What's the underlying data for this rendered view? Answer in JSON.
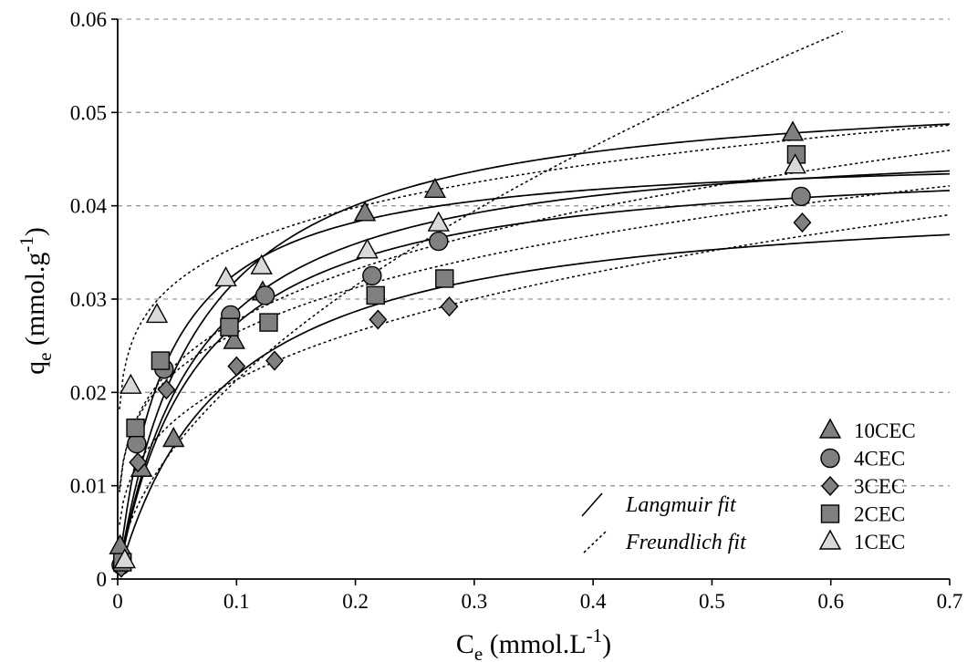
{
  "chart_data": {
    "type": "scatter",
    "xlabel": {
      "main": "C",
      "sub": "e",
      "units": " (mmol.L",
      "sup": "-1",
      "close": ")"
    },
    "ylabel": {
      "main": "q",
      "sub": "e",
      "units": " (mmol.g",
      "sup": "-1",
      "close": ")"
    },
    "xlim": [
      0,
      0.7
    ],
    "ylim": [
      0,
      0.06
    ],
    "x_ticks": [
      {
        "v": 0,
        "label": "0"
      },
      {
        "v": 0.1,
        "label": "0.1"
      },
      {
        "v": 0.2,
        "label": "0.2"
      },
      {
        "v": 0.3,
        "label": "0.3"
      },
      {
        "v": 0.4,
        "label": "0.4"
      },
      {
        "v": 0.5,
        "label": "0.5"
      },
      {
        "v": 0.6,
        "label": "0.6"
      },
      {
        "v": 0.7,
        "label": "0.7"
      }
    ],
    "y_ticks": [
      {
        "v": 0,
        "label": "0"
      },
      {
        "v": 0.01,
        "label": "0.01"
      },
      {
        "v": 0.02,
        "label": "0.02"
      },
      {
        "v": 0.03,
        "label": "0.03"
      },
      {
        "v": 0.04,
        "label": "0.04"
      },
      {
        "v": 0.05,
        "label": "0.05"
      },
      {
        "v": 0.06,
        "label": "0.06"
      }
    ],
    "horizontal_gridlines": "dashed",
    "legend_position": "bottom-right",
    "series": [
      {
        "name": "10CEC",
        "marker": "triangle",
        "fill": "#808080",
        "points": [
          [
            0.002,
            0.0035
          ],
          [
            0.02,
            0.0118
          ],
          [
            0.047,
            0.015
          ],
          [
            0.098,
            0.0255
          ],
          [
            0.122,
            0.0307
          ],
          [
            0.208,
            0.0392
          ],
          [
            0.267,
            0.0417
          ],
          [
            0.568,
            0.0478
          ]
        ],
        "langmuir": {
          "qmax": 0.0534,
          "K": 15.0
        },
        "freundlich": {
          "K": 0.0774,
          "n": 0.56,
          "x_end": 0.61
        }
      },
      {
        "name": "4CEC",
        "marker": "circle",
        "fill": "#808080",
        "points": [
          [
            0.003,
            0.0015
          ],
          [
            0.016,
            0.0145
          ],
          [
            0.039,
            0.0225
          ],
          [
            0.095,
            0.0283
          ],
          [
            0.124,
            0.0304
          ],
          [
            0.214,
            0.0325
          ],
          [
            0.27,
            0.0362
          ],
          [
            0.575,
            0.041
          ]
        ],
        "langmuir": {
          "qmax": 0.0479,
          "K": 15.0
        },
        "freundlich": {
          "K": 0.0504,
          "n": 0.26
        }
      },
      {
        "name": "3CEC",
        "marker": "diamond",
        "fill": "#808080",
        "points": [
          [
            0.003,
            0.0012
          ],
          [
            0.017,
            0.0125
          ],
          [
            0.041,
            0.0203
          ],
          [
            0.1,
            0.0228
          ],
          [
            0.132,
            0.0234
          ],
          [
            0.219,
            0.0278
          ],
          [
            0.279,
            0.0292
          ],
          [
            0.576,
            0.0382
          ]
        ],
        "langmuir": {
          "qmax": 0.0417,
          "K": 11.0
        },
        "freundlich": {
          "K": 0.0436,
          "n": 0.31
        }
      },
      {
        "name": "2CEC",
        "marker": "square",
        "fill": "#808080",
        "points": [
          [
            0.004,
            0.0018
          ],
          [
            0.015,
            0.0162
          ],
          [
            0.036,
            0.0234
          ],
          [
            0.094,
            0.027
          ],
          [
            0.127,
            0.0275
          ],
          [
            0.217,
            0.0304
          ],
          [
            0.275,
            0.0322
          ],
          [
            0.571,
            0.0455
          ]
        ],
        "langmuir": {
          "qmax": 0.0456,
          "K": 15.0
        },
        "freundlich": {
          "K": 0.0459,
          "n": 0.24
        }
      },
      {
        "name": "1CEC",
        "marker": "triangle",
        "fill": "#d9d9d9",
        "points": [
          [
            0.006,
            0.002
          ],
          [
            0.011,
            0.0207
          ],
          [
            0.033,
            0.0283
          ],
          [
            0.091,
            0.0322
          ],
          [
            0.121,
            0.0335
          ],
          [
            0.21,
            0.0352
          ],
          [
            0.27,
            0.0381
          ],
          [
            0.57,
            0.0443
          ]
        ],
        "langmuir": {
          "qmax": 0.0459,
          "K": 25.0
        },
        "freundlich": {
          "K": 0.0515,
          "n": 0.16
        }
      }
    ],
    "fit_legend": [
      {
        "label": "Langmuir fit",
        "style": "solid"
      },
      {
        "label": "Freundlich fit",
        "style": "dotted"
      }
    ],
    "colors": {
      "marker_dark": "#808080",
      "marker_light": "#d9d9d9",
      "grid": "#999999",
      "line": "#000000"
    }
  }
}
